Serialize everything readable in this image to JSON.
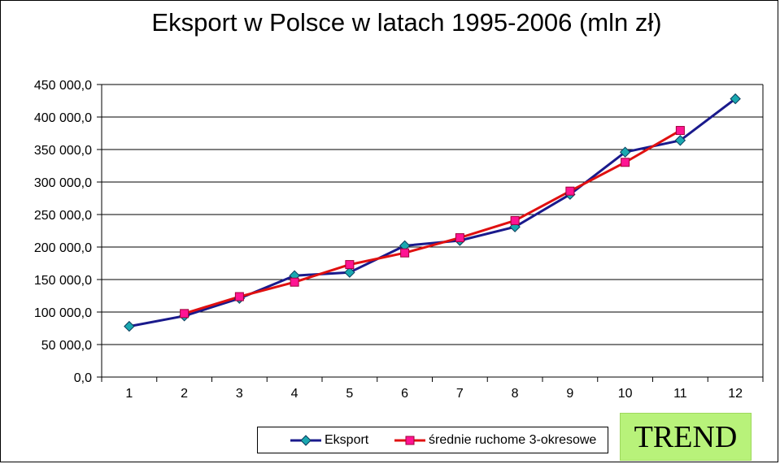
{
  "colors": {
    "series_export": "#1a1a8c",
    "series_export_marker": "#1aa8b0",
    "series_ma": "#e01010",
    "series_ma_marker": "#ff1493",
    "grid": "#000000",
    "trend_bg": "#b8f27a"
  },
  "trend_label": "TREND",
  "chart_data": {
    "type": "line",
    "title": "Eksport w Polsce w latach 1995-2006 (mln zł)",
    "xlabel": "",
    "ylabel": "",
    "categories": [
      "1",
      "2",
      "3",
      "4",
      "5",
      "6",
      "7",
      "8",
      "9",
      "10",
      "11",
      "12"
    ],
    "ylim": [
      0,
      450000
    ],
    "yticks": [
      "0,0",
      "50 000,0",
      "100 000,0",
      "150 000,0",
      "200 000,0",
      "250 000,0",
      "300 000,0",
      "350 000,0",
      "400 000,0",
      "450 000,0"
    ],
    "grid": true,
    "legend_position": "bottom",
    "series": [
      {
        "name": "Eksport",
        "values": [
          78000,
          94000,
          121000,
          156000,
          161000,
          202000,
          210000,
          231000,
          281000,
          346000,
          364000,
          428000
        ]
      },
      {
        "name": "średnie ruchome 3-okresowe",
        "values": [
          null,
          97700,
          123700,
          146000,
          173000,
          191000,
          214300,
          240700,
          286000,
          330300,
          379300,
          null
        ]
      }
    ]
  }
}
